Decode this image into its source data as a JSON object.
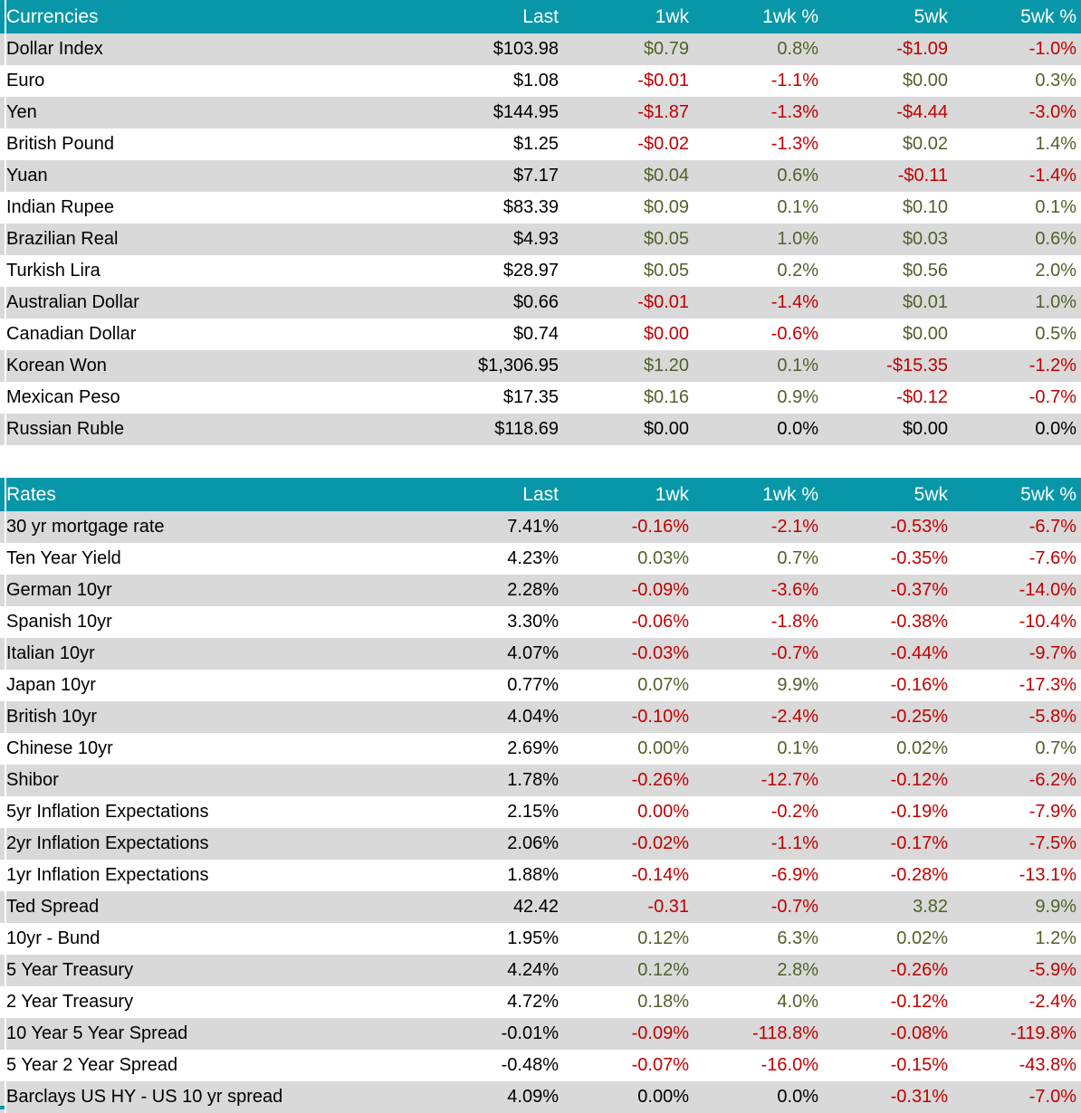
{
  "colors": {
    "header_bg": "#0897A8",
    "header_text": "#FFFFFF",
    "stripe_bg": "#D9D9D9",
    "positive_text": "#4F6228",
    "negative_text": "#C00000",
    "neutral_text": "#000000"
  },
  "tables": [
    {
      "title": "Currencies",
      "columns": [
        "Last",
        "1wk",
        "1wk %",
        "5wk",
        "5wk %"
      ],
      "rows": [
        {
          "label": "Dollar Index",
          "cells": [
            {
              "v": "$103.98",
              "c": "neutral"
            },
            {
              "v": "$0.79",
              "c": "pos"
            },
            {
              "v": "0.8%",
              "c": "pos"
            },
            {
              "v": "-$1.09",
              "c": "neg"
            },
            {
              "v": "-1.0%",
              "c": "neg"
            }
          ]
        },
        {
          "label": "Euro",
          "cells": [
            {
              "v": "$1.08",
              "c": "neutral"
            },
            {
              "v": "-$0.01",
              "c": "neg"
            },
            {
              "v": "-1.1%",
              "c": "neg"
            },
            {
              "v": "$0.00",
              "c": "pos"
            },
            {
              "v": "0.3%",
              "c": "pos"
            }
          ]
        },
        {
          "label": "Yen",
          "cells": [
            {
              "v": "$144.95",
              "c": "neutral"
            },
            {
              "v": "-$1.87",
              "c": "neg"
            },
            {
              "v": "-1.3%",
              "c": "neg"
            },
            {
              "v": "-$4.44",
              "c": "neg"
            },
            {
              "v": "-3.0%",
              "c": "neg"
            }
          ]
        },
        {
          "label": "British Pound",
          "cells": [
            {
              "v": "$1.25",
              "c": "neutral"
            },
            {
              "v": "-$0.02",
              "c": "neg"
            },
            {
              "v": "-1.3%",
              "c": "neg"
            },
            {
              "v": "$0.02",
              "c": "pos"
            },
            {
              "v": "1.4%",
              "c": "pos"
            }
          ]
        },
        {
          "label": "Yuan",
          "cells": [
            {
              "v": "$7.17",
              "c": "neutral"
            },
            {
              "v": "$0.04",
              "c": "pos"
            },
            {
              "v": "0.6%",
              "c": "pos"
            },
            {
              "v": "-$0.11",
              "c": "neg"
            },
            {
              "v": "-1.4%",
              "c": "neg"
            }
          ]
        },
        {
          "label": "Indian Rupee",
          "cells": [
            {
              "v": "$83.39",
              "c": "neutral"
            },
            {
              "v": "$0.09",
              "c": "pos"
            },
            {
              "v": "0.1%",
              "c": "pos"
            },
            {
              "v": "$0.10",
              "c": "pos"
            },
            {
              "v": "0.1%",
              "c": "pos"
            }
          ]
        },
        {
          "label": "Brazilian Real",
          "cells": [
            {
              "v": "$4.93",
              "c": "neutral"
            },
            {
              "v": "$0.05",
              "c": "pos"
            },
            {
              "v": "1.0%",
              "c": "pos"
            },
            {
              "v": "$0.03",
              "c": "pos"
            },
            {
              "v": "0.6%",
              "c": "pos"
            }
          ]
        },
        {
          "label": "Turkish Lira",
          "cells": [
            {
              "v": "$28.97",
              "c": "neutral"
            },
            {
              "v": "$0.05",
              "c": "pos"
            },
            {
              "v": "0.2%",
              "c": "pos"
            },
            {
              "v": "$0.56",
              "c": "pos"
            },
            {
              "v": "2.0%",
              "c": "pos"
            }
          ]
        },
        {
          "label": "Australian Dollar",
          "cells": [
            {
              "v": "$0.66",
              "c": "neutral"
            },
            {
              "v": "-$0.01",
              "c": "neg"
            },
            {
              "v": "-1.4%",
              "c": "neg"
            },
            {
              "v": "$0.01",
              "c": "pos"
            },
            {
              "v": "1.0%",
              "c": "pos"
            }
          ]
        },
        {
          "label": "Canadian Dollar",
          "cells": [
            {
              "v": "$0.74",
              "c": "neutral"
            },
            {
              "v": "$0.00",
              "c": "neg"
            },
            {
              "v": "-0.6%",
              "c": "neg"
            },
            {
              "v": "$0.00",
              "c": "pos"
            },
            {
              "v": "0.5%",
              "c": "pos"
            }
          ]
        },
        {
          "label": "Korean Won",
          "cells": [
            {
              "v": "$1,306.95",
              "c": "neutral"
            },
            {
              "v": "$1.20",
              "c": "pos"
            },
            {
              "v": "0.1%",
              "c": "pos"
            },
            {
              "v": "-$15.35",
              "c": "neg"
            },
            {
              "v": "-1.2%",
              "c": "neg"
            }
          ]
        },
        {
          "label": "Mexican Peso",
          "cells": [
            {
              "v": "$17.35",
              "c": "neutral"
            },
            {
              "v": "$0.16",
              "c": "pos"
            },
            {
              "v": "0.9%",
              "c": "pos"
            },
            {
              "v": "-$0.12",
              "c": "neg"
            },
            {
              "v": "-0.7%",
              "c": "neg"
            }
          ]
        },
        {
          "label": "Russian Ruble",
          "cells": [
            {
              "v": "$118.69",
              "c": "neutral"
            },
            {
              "v": "$0.00",
              "c": "neutral"
            },
            {
              "v": "0.0%",
              "c": "neutral"
            },
            {
              "v": "$0.00",
              "c": "neutral"
            },
            {
              "v": "0.0%",
              "c": "neutral"
            }
          ]
        }
      ]
    },
    {
      "title": "Rates",
      "columns": [
        "Last",
        "1wk",
        "1wk %",
        "5wk",
        "5wk %"
      ],
      "rows": [
        {
          "label": "30 yr mortgage rate",
          "cells": [
            {
              "v": "7.41%",
              "c": "neutral"
            },
            {
              "v": "-0.16%",
              "c": "neg"
            },
            {
              "v": "-2.1%",
              "c": "neg"
            },
            {
              "v": "-0.53%",
              "c": "neg"
            },
            {
              "v": "-6.7%",
              "c": "neg"
            }
          ]
        },
        {
          "label": "Ten Year Yield",
          "cells": [
            {
              "v": "4.23%",
              "c": "neutral"
            },
            {
              "v": "0.03%",
              "c": "pos"
            },
            {
              "v": "0.7%",
              "c": "pos"
            },
            {
              "v": "-0.35%",
              "c": "neg"
            },
            {
              "v": "-7.6%",
              "c": "neg"
            }
          ]
        },
        {
          "label": "German 10yr",
          "cells": [
            {
              "v": "2.28%",
              "c": "neutral"
            },
            {
              "v": "-0.09%",
              "c": "neg"
            },
            {
              "v": "-3.6%",
              "c": "neg"
            },
            {
              "v": "-0.37%",
              "c": "neg"
            },
            {
              "v": "-14.0%",
              "c": "neg"
            }
          ]
        },
        {
          "label": "Spanish 10yr",
          "cells": [
            {
              "v": "3.30%",
              "c": "neutral"
            },
            {
              "v": "-0.06%",
              "c": "neg"
            },
            {
              "v": "-1.8%",
              "c": "neg"
            },
            {
              "v": "-0.38%",
              "c": "neg"
            },
            {
              "v": "-10.4%",
              "c": "neg"
            }
          ]
        },
        {
          "label": "Italian 10yr",
          "cells": [
            {
              "v": "4.07%",
              "c": "neutral"
            },
            {
              "v": "-0.03%",
              "c": "neg"
            },
            {
              "v": "-0.7%",
              "c": "neg"
            },
            {
              "v": "-0.44%",
              "c": "neg"
            },
            {
              "v": "-9.7%",
              "c": "neg"
            }
          ]
        },
        {
          "label": "Japan 10yr",
          "cells": [
            {
              "v": "0.77%",
              "c": "neutral"
            },
            {
              "v": "0.07%",
              "c": "pos"
            },
            {
              "v": "9.9%",
              "c": "pos"
            },
            {
              "v": "-0.16%",
              "c": "neg"
            },
            {
              "v": "-17.3%",
              "c": "neg"
            }
          ]
        },
        {
          "label": "British 10yr",
          "cells": [
            {
              "v": "4.04%",
              "c": "neutral"
            },
            {
              "v": "-0.10%",
              "c": "neg"
            },
            {
              "v": "-2.4%",
              "c": "neg"
            },
            {
              "v": "-0.25%",
              "c": "neg"
            },
            {
              "v": "-5.8%",
              "c": "neg"
            }
          ]
        },
        {
          "label": "Chinese 10yr",
          "cells": [
            {
              "v": "2.69%",
              "c": "neutral"
            },
            {
              "v": "0.00%",
              "c": "pos"
            },
            {
              "v": "0.1%",
              "c": "pos"
            },
            {
              "v": "0.02%",
              "c": "pos"
            },
            {
              "v": "0.7%",
              "c": "pos"
            }
          ]
        },
        {
          "label": "Shibor",
          "cells": [
            {
              "v": "1.78%",
              "c": "neutral"
            },
            {
              "v": "-0.26%",
              "c": "neg"
            },
            {
              "v": "-12.7%",
              "c": "neg"
            },
            {
              "v": "-0.12%",
              "c": "neg"
            },
            {
              "v": "-6.2%",
              "c": "neg"
            }
          ]
        },
        {
          "label": "5yr Inflation Expectations",
          "cells": [
            {
              "v": "2.15%",
              "c": "neutral"
            },
            {
              "v": "0.00%",
              "c": "neg"
            },
            {
              "v": "-0.2%",
              "c": "neg"
            },
            {
              "v": "-0.19%",
              "c": "neg"
            },
            {
              "v": "-7.9%",
              "c": "neg"
            }
          ]
        },
        {
          "label": "2yr Inflation Expectations",
          "cells": [
            {
              "v": "2.06%",
              "c": "neutral"
            },
            {
              "v": "-0.02%",
              "c": "neg"
            },
            {
              "v": "-1.1%",
              "c": "neg"
            },
            {
              "v": "-0.17%",
              "c": "neg"
            },
            {
              "v": "-7.5%",
              "c": "neg"
            }
          ]
        },
        {
          "label": "1yr Inflation Expectations",
          "cells": [
            {
              "v": "1.88%",
              "c": "neutral"
            },
            {
              "v": "-0.14%",
              "c": "neg"
            },
            {
              "v": "-6.9%",
              "c": "neg"
            },
            {
              "v": "-0.28%",
              "c": "neg"
            },
            {
              "v": "-13.1%",
              "c": "neg"
            }
          ]
        },
        {
          "label": "Ted Spread",
          "cells": [
            {
              "v": "42.42",
              "c": "neutral"
            },
            {
              "v": "-0.31",
              "c": "neg"
            },
            {
              "v": "-0.7%",
              "c": "neg"
            },
            {
              "v": "3.82",
              "c": "pos"
            },
            {
              "v": "9.9%",
              "c": "pos"
            }
          ]
        },
        {
          "label": "10yr - Bund",
          "cells": [
            {
              "v": "1.95%",
              "c": "neutral"
            },
            {
              "v": "0.12%",
              "c": "pos"
            },
            {
              "v": "6.3%",
              "c": "pos"
            },
            {
              "v": "0.02%",
              "c": "pos"
            },
            {
              "v": "1.2%",
              "c": "pos"
            }
          ]
        },
        {
          "label": "5 Year Treasury",
          "cells": [
            {
              "v": "4.24%",
              "c": "neutral"
            },
            {
              "v": "0.12%",
              "c": "pos"
            },
            {
              "v": "2.8%",
              "c": "pos"
            },
            {
              "v": "-0.26%",
              "c": "neg"
            },
            {
              "v": "-5.9%",
              "c": "neg"
            }
          ]
        },
        {
          "label": "2 Year Treasury",
          "cells": [
            {
              "v": "4.72%",
              "c": "neutral"
            },
            {
              "v": "0.18%",
              "c": "pos"
            },
            {
              "v": "4.0%",
              "c": "pos"
            },
            {
              "v": "-0.12%",
              "c": "neg"
            },
            {
              "v": "-2.4%",
              "c": "neg"
            }
          ]
        },
        {
          "label": "10 Year 5 Year Spread",
          "cells": [
            {
              "v": "-0.01%",
              "c": "neutral"
            },
            {
              "v": "-0.09%",
              "c": "neg"
            },
            {
              "v": "-118.8%",
              "c": "neg"
            },
            {
              "v": "-0.08%",
              "c": "neg"
            },
            {
              "v": "-119.8%",
              "c": "neg"
            }
          ]
        },
        {
          "label": "5 Year 2 Year Spread",
          "cells": [
            {
              "v": "-0.48%",
              "c": "neutral"
            },
            {
              "v": "-0.07%",
              "c": "neg"
            },
            {
              "v": "-16.0%",
              "c": "neg"
            },
            {
              "v": "-0.15%",
              "c": "neg"
            },
            {
              "v": "-43.8%",
              "c": "neg"
            }
          ]
        },
        {
          "label": "Barclays US HY - US 10 yr spread",
          "cells": [
            {
              "v": "4.09%",
              "c": "neutral"
            },
            {
              "v": "0.00%",
              "c": "neutral"
            },
            {
              "v": "0.0%",
              "c": "neutral"
            },
            {
              "v": "-0.31%",
              "c": "neg"
            },
            {
              "v": "-7.0%",
              "c": "neg"
            }
          ]
        }
      ]
    }
  ]
}
